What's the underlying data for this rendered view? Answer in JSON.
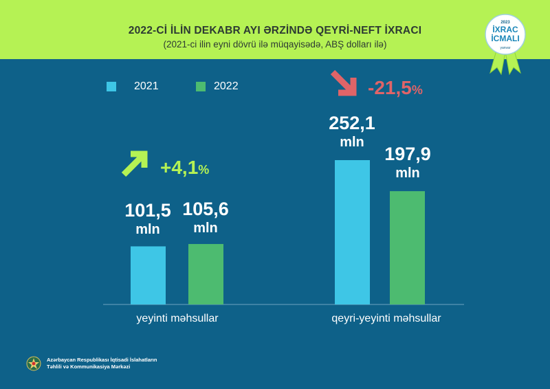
{
  "header": {
    "title": "2022-Cİ İLİN DEKABR AYI ƏRZİNDƏ QEYRİ-NEFT İXRACI",
    "subtitle": "(2021-ci ilin eyni dövrü ilə müqayisədə, ABŞ dolları ilə)"
  },
  "badge": {
    "year": "2023",
    "line1": "İXRAC",
    "line2": "İCMALI",
    "month": "yanvar"
  },
  "colors": {
    "header_bg": "#b5f254",
    "background": "#0e6189",
    "series_2021": "#3ec6e6",
    "series_2022": "#4dbb70",
    "up": "#b5f254",
    "down": "#e06468"
  },
  "chart_data": {
    "type": "bar",
    "title": "",
    "xlabel": "",
    "ylabel": "",
    "grid": false,
    "legend": "top-left",
    "categories": [
      "yeyinti məhsullar",
      "qeyri-yeyinti məhsullar"
    ],
    "series": [
      {
        "name": "2021",
        "values": [
          101.5,
          252.1
        ]
      },
      {
        "name": "2022",
        "values": [
          105.6,
          197.9
        ]
      }
    ],
    "data_labels": [
      [
        "101,5",
        "105,6"
      ],
      [
        "252,1",
        "197,9"
      ]
    ],
    "unit": "mln",
    "changes": [
      {
        "value": "+4,1",
        "suffix": "%",
        "direction": "up"
      },
      {
        "value": "-21,5",
        "suffix": "%",
        "direction": "down"
      }
    ],
    "ylim": [
      0,
      260
    ]
  },
  "footer": {
    "line1": "Azərbaycan Respublikası İqtisadi İslahatların",
    "line2": "Təhlili və Kommunikasiya Mərkəzi"
  }
}
